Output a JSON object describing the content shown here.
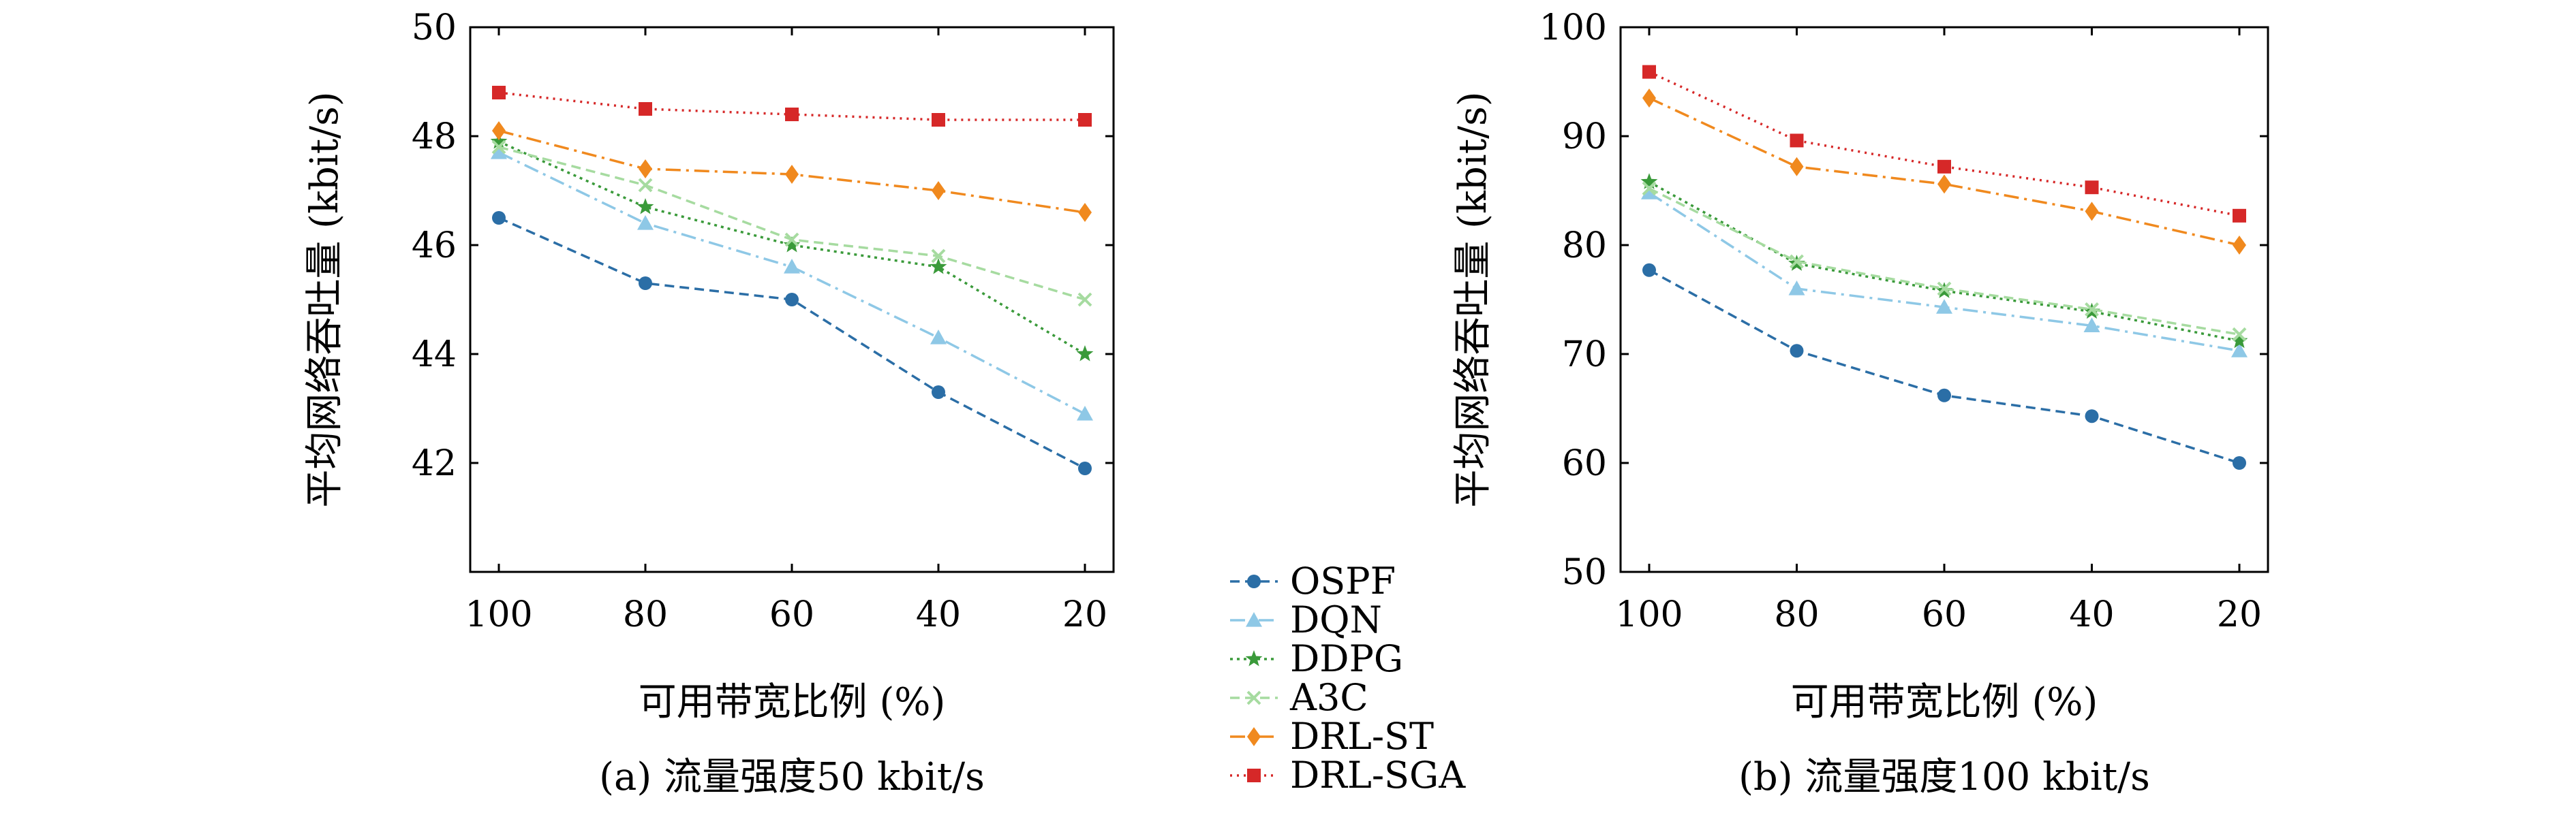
{
  "chart_data": [
    {
      "type": "line",
      "caption": "(a) 流量强度50 kbit/s",
      "xlabel": "可用带宽比例 (%)",
      "ylabel": "平均网络吞吐量 (kbit/s)",
      "categories": [
        "100",
        "80",
        "60",
        "40",
        "20"
      ],
      "ylim": [
        40,
        50
      ],
      "yticks": [
        42,
        44,
        46,
        48,
        50
      ],
      "series": [
        {
          "name": "OSPF",
          "values": [
            46.5,
            45.3,
            45.0,
            43.3,
            41.9
          ]
        },
        {
          "name": "DQN",
          "values": [
            47.7,
            46.4,
            45.6,
            44.3,
            42.9
          ]
        },
        {
          "name": "DDPG",
          "values": [
            47.9,
            46.7,
            46.0,
            45.6,
            44.0
          ]
        },
        {
          "name": "A3C",
          "values": [
            47.8,
            47.1,
            46.1,
            45.8,
            45.0
          ]
        },
        {
          "name": "DRL-ST",
          "values": [
            48.1,
            47.4,
            47.3,
            47.0,
            46.6
          ]
        },
        {
          "name": "DRL-SGA",
          "values": [
            48.8,
            48.5,
            48.4,
            48.3,
            48.3
          ]
        }
      ]
    },
    {
      "type": "line",
      "caption": "(b) 流量强度100 kbit/s",
      "xlabel": "可用带宽比例 (%)",
      "ylabel": "平均网络吞吐量 (kbit/s)",
      "categories": [
        "100",
        "80",
        "60",
        "40",
        "20"
      ],
      "ylim": [
        50,
        100
      ],
      "yticks": [
        50,
        60,
        70,
        80,
        90,
        100
      ],
      "series": [
        {
          "name": "OSPF",
          "values": [
            77.7,
            70.3,
            66.2,
            64.3,
            60.0
          ]
        },
        {
          "name": "DQN",
          "values": [
            84.8,
            76.0,
            74.3,
            72.6,
            70.3
          ]
        },
        {
          "name": "DDPG",
          "values": [
            85.8,
            78.3,
            75.8,
            73.9,
            71.2
          ]
        },
        {
          "name": "A3C",
          "values": [
            85.2,
            78.5,
            76.0,
            74.1,
            71.8
          ]
        },
        {
          "name": "DRL-ST",
          "values": [
            93.5,
            87.2,
            85.6,
            83.1,
            80.0
          ]
        },
        {
          "name": "DRL-SGA",
          "values": [
            95.9,
            89.6,
            87.2,
            85.3,
            82.7
          ]
        }
      ]
    }
  ],
  "legend": {
    "placement": "bottom-center",
    "entries": [
      "OSPF",
      "DQN",
      "DDPG",
      "A3C",
      "DRL-ST",
      "DRL-SGA"
    ]
  },
  "colors": {
    "OSPF": "#2b6ea6",
    "DQN": "#8ec8e6",
    "DDPG": "#3a9a3a",
    "A3C": "#a6dba0",
    "DRL-ST": "#f0891e",
    "DRL-SGA": "#d62828"
  },
  "markers": {
    "OSPF": "circle",
    "DQN": "triangle",
    "DDPG": "star",
    "A3C": "x",
    "DRL-ST": "diamond",
    "DRL-SGA": "square"
  },
  "dashes": {
    "OSPF": "14,8",
    "DQN": "22,8,4,8",
    "DDPG": "4,6",
    "A3C": "14,8",
    "DRL-ST": "22,8,4,8",
    "DRL-SGA": "3,7"
  }
}
